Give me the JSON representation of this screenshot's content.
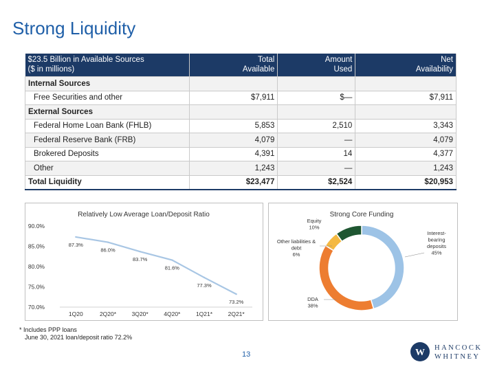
{
  "page": {
    "title": "Strong Liquidity",
    "page_number": "13"
  },
  "table": {
    "headers": [
      "$23.5 Billion in Available Sources\n($ in millions)",
      "Total\nAvailable",
      "Amount\nUsed",
      "Net\nAvailability"
    ],
    "rows": [
      {
        "type": "section",
        "cells": [
          "Internal Sources",
          "",
          "",
          ""
        ]
      },
      {
        "type": "item",
        "cells": [
          "Free Securities and other",
          "$7,911",
          "$—",
          "$7,911"
        ]
      },
      {
        "type": "section",
        "cells": [
          "External Sources",
          "",
          "",
          ""
        ]
      },
      {
        "type": "item",
        "cells": [
          "Federal Home Loan Bank (FHLB)",
          "5,853",
          "2,510",
          "3,343"
        ]
      },
      {
        "type": "item",
        "cells": [
          "Federal Reserve Bank (FRB)",
          "4,079",
          "—",
          "4,079"
        ]
      },
      {
        "type": "item",
        "cells": [
          "Brokered Deposits",
          "4,391",
          "14",
          "4,377"
        ]
      },
      {
        "type": "item",
        "cells": [
          "Other",
          "1,243",
          "—",
          "1,243"
        ]
      },
      {
        "type": "total",
        "cells": [
          "Total Liquidity",
          "$23,477",
          "$2,524",
          "$20,953"
        ]
      }
    ]
  },
  "chart_data": [
    {
      "type": "line",
      "title": "Relatively Low Average Loan/Deposit Ratio",
      "categories": [
        "1Q20",
        "2Q20*",
        "3Q20*",
        "4Q20*",
        "1Q21*",
        "2Q21*"
      ],
      "values": [
        87.3,
        86.0,
        83.7,
        81.6,
        77.3,
        73.2
      ],
      "data_labels": [
        "87.3%",
        "86.0%",
        "83.7%",
        "81.6%",
        "77.3%",
        "73.2%"
      ],
      "ylim": [
        70,
        90
      ],
      "yticks": [
        "70.0%",
        "75.0%",
        "80.0%",
        "85.0%",
        "90.0%"
      ],
      "line_color": "#a8c6e4"
    },
    {
      "type": "pie",
      "title": "Strong Core Funding",
      "slices": [
        {
          "label": "Interest-bearing deposits",
          "value": 45,
          "pct": "45%",
          "color": "#9dc3e6"
        },
        {
          "label": "DDA",
          "value": 38,
          "pct": "38%",
          "color": "#ed7d31"
        },
        {
          "label": "Other liabilities & debt",
          "value": 6,
          "pct": "6%",
          "color": "#f4b942"
        },
        {
          "label": "Equity",
          "value": 10,
          "pct": "10%",
          "color": "#1e5631"
        }
      ]
    }
  ],
  "footnote": {
    "line1": "* Includes PPP loans",
    "line2": "June 30, 2021 loan/deposit ratio 72.2%"
  },
  "logo": {
    "line1": "HANCOCK",
    "line2": "WHITNEY",
    "mark": "W"
  }
}
